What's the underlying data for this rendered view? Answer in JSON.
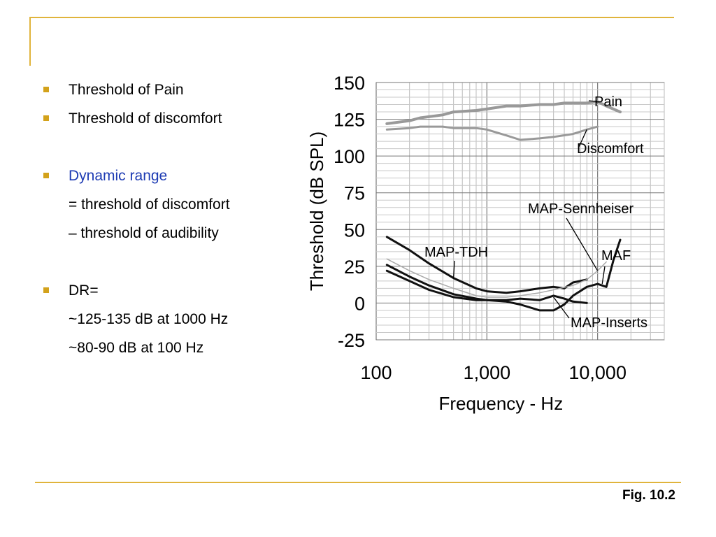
{
  "bullets": [
    {
      "text": "Threshold of Pain",
      "bullet": true,
      "color": "#000000"
    },
    {
      "text": "Threshold of discomfort",
      "bullet": true,
      "color": "#000000"
    },
    {
      "text": "Dynamic range",
      "bullet": true,
      "color": "#1d3bb3"
    },
    {
      "text": "= threshold of discomfort",
      "bullet": false
    },
    {
      "text": "– threshold of audibility",
      "bullet": false
    },
    {
      "text": "DR=",
      "bullet": true,
      "color": "#000000"
    },
    {
      "text": "~125-135 dB at 1000 Hz",
      "bullet": false
    },
    {
      "text": "~80-90 dB at 100 Hz",
      "bullet": false
    }
  ],
  "fig_caption": "Fig. 10.2",
  "colors": {
    "accent_rule": "#e0b43c",
    "bullet": "#d3a21b",
    "link_blue": "#1d3bb3"
  },
  "chart_data": {
    "type": "line",
    "xlabel": "Frequency - Hz",
    "ylabel": "Threshold (dB SPL)",
    "xscale": "log",
    "xlim": [
      100,
      40000
    ],
    "ylim": [
      -25,
      150
    ],
    "xticks": [
      {
        "value": 100,
        "label": "100"
      },
      {
        "value": 1000,
        "label": "1,000"
      },
      {
        "value": 10000,
        "label": "10,000"
      }
    ],
    "yticks": [
      150,
      125,
      100,
      75,
      50,
      25,
      0,
      -25
    ],
    "grid": true,
    "series": [
      {
        "name": "Pain",
        "color": "#999999",
        "width": 4,
        "x": [
          125,
          200,
          250,
          400,
          500,
          800,
          1000,
          1500,
          2000,
          3000,
          4000,
          5000,
          6000,
          8000,
          10000,
          12000,
          16000
        ],
        "y": [
          122,
          124,
          126,
          128,
          130,
          131,
          132,
          134,
          134,
          135,
          135,
          136,
          136,
          136,
          137,
          134,
          130
        ]
      },
      {
        "name": "Discomfort",
        "color": "#999999",
        "width": 3,
        "x": [
          125,
          200,
          250,
          400,
          500,
          800,
          1000,
          1500,
          2000,
          3000,
          4000,
          6000,
          8000,
          10000
        ],
        "y": [
          118,
          119,
          120,
          120,
          119,
          119,
          118,
          114,
          111,
          112,
          113,
          115,
          118,
          120
        ]
      },
      {
        "name": "MAP-TDH",
        "color": "#111111",
        "width": 3,
        "x": [
          125,
          200,
          300,
          500,
          800,
          1000,
          1500,
          2000,
          3000,
          4000,
          5000,
          6000,
          8000
        ],
        "y": [
          45,
          36,
          27,
          17,
          10,
          8,
          7,
          8,
          10,
          11,
          10,
          14,
          16
        ]
      },
      {
        "name": "MAP-Sennheiser",
        "color": "#aaaaaa",
        "width": 1.5,
        "x": [
          125,
          200,
          300,
          500,
          800,
          1000,
          1500,
          2000,
          3000,
          4000,
          6000,
          8000,
          10000,
          12000
        ],
        "y": [
          30,
          22,
          16,
          10,
          5,
          4,
          4,
          5,
          7,
          9,
          12,
          16,
          22,
          28
        ]
      },
      {
        "name": "MAP-Inserts",
        "color": "#111111",
        "width": 3,
        "x": [
          125,
          200,
          300,
          500,
          800,
          1000,
          1500,
          2000,
          3000,
          4000,
          5000,
          6000,
          8000
        ],
        "y": [
          26,
          18,
          12,
          6,
          3,
          2,
          2,
          3,
          2,
          5,
          3,
          1,
          0
        ]
      },
      {
        "name": "MAF",
        "color": "#111111",
        "width": 3,
        "x": [
          125,
          200,
          300,
          500,
          800,
          1000,
          1500,
          2000,
          3000,
          4000,
          5000,
          6000,
          8000,
          10000,
          12000,
          14000,
          16000
        ],
        "y": [
          22,
          15,
          9,
          4,
          2,
          2,
          1,
          -1,
          -5,
          -5,
          -1,
          5,
          11,
          13,
          11,
          30,
          43
        ]
      }
    ],
    "annotations": [
      {
        "text": "Pain",
        "series": "Pain"
      },
      {
        "text": "Discomfort",
        "series": "Discomfort"
      },
      {
        "text": "MAP-Sennheiser",
        "series": "MAP-Sennheiser"
      },
      {
        "text": "MAP-TDH",
        "series": "MAP-TDH"
      },
      {
        "text": "MAF",
        "series": "MAF"
      },
      {
        "text": "MAP-Inserts",
        "series": "MAP-Inserts"
      }
    ]
  }
}
